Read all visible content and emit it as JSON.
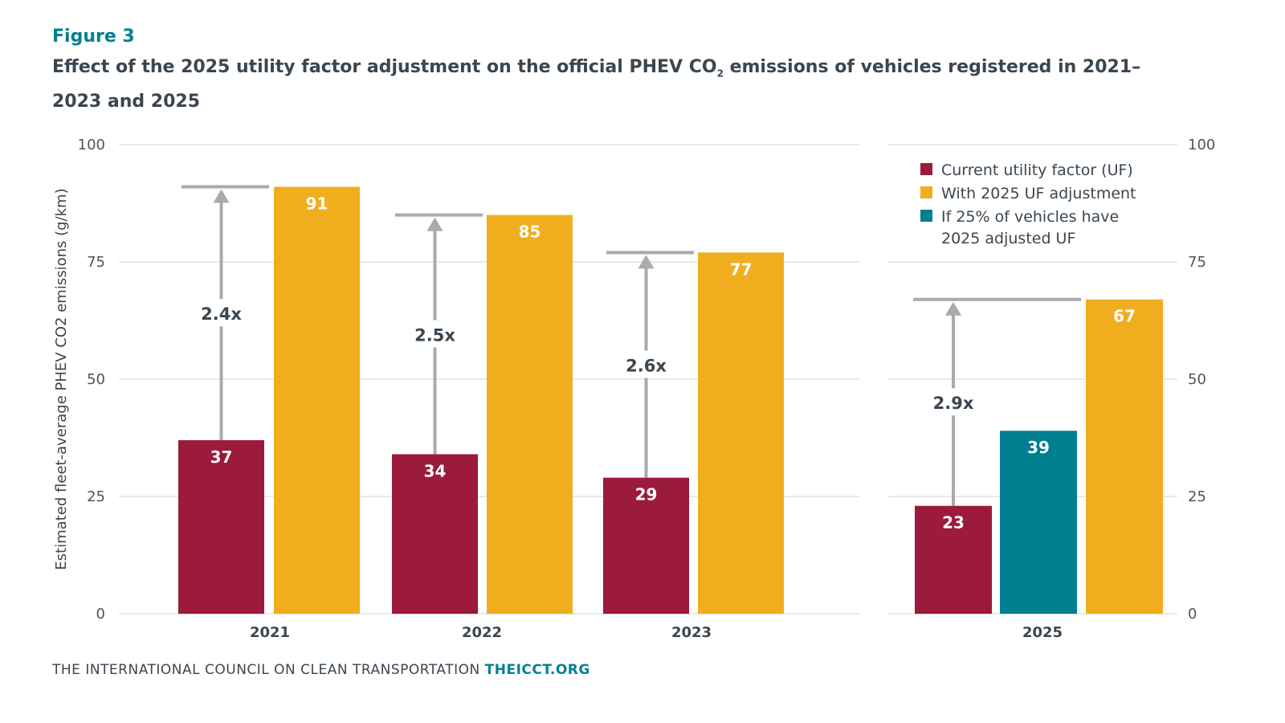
{
  "header": {
    "figure_label": "Figure 3",
    "title_part1": "Effect of the 2025 utility factor adjustment on the official PHEV CO",
    "title_sub": "2",
    "title_part2": " emissions of vehicles registered in 2021–2023 and 2025"
  },
  "footer": {
    "org": "THE INTERNATIONAL COUNCIL ON CLEAN TRANSPORTATION",
    "url": "THEICCT.ORG"
  },
  "chart_data": {
    "type": "bar",
    "ylabel": "Estimated fleet-average PHEV CO2 emissions (g/km)",
    "ylim": [
      0,
      100
    ],
    "yticks": [
      "0",
      "25",
      "50",
      "75",
      "100"
    ],
    "grid": true,
    "legend_position": "top-right",
    "colors": {
      "current": "#9c1a3c",
      "adjusted": "#f0ae1f",
      "partial": "#007f91",
      "arrow": "#a9a9ae"
    },
    "legend": [
      "Current utility factor (UF)",
      "With 2025 UF adjustment",
      "If 25% of vehicles have",
      "2025 adjusted UF"
    ],
    "groups": [
      {
        "category": "2021",
        "current": 37,
        "adjusted": 91,
        "multiplier": "2.4x",
        "current_label": "37",
        "adjusted_label": "91"
      },
      {
        "category": "2022",
        "current": 34,
        "adjusted": 85,
        "multiplier": "2.5x",
        "current_label": "34",
        "adjusted_label": "85"
      },
      {
        "category": "2023",
        "current": 29,
        "adjusted": 77,
        "multiplier": "2.6x",
        "current_label": "29",
        "adjusted_label": "77"
      },
      {
        "category": "2025",
        "current": 23,
        "partial": 39,
        "adjusted": 67,
        "multiplier": "2.9x",
        "current_label": "23",
        "partial_label": "39",
        "adjusted_label": "67"
      }
    ]
  }
}
